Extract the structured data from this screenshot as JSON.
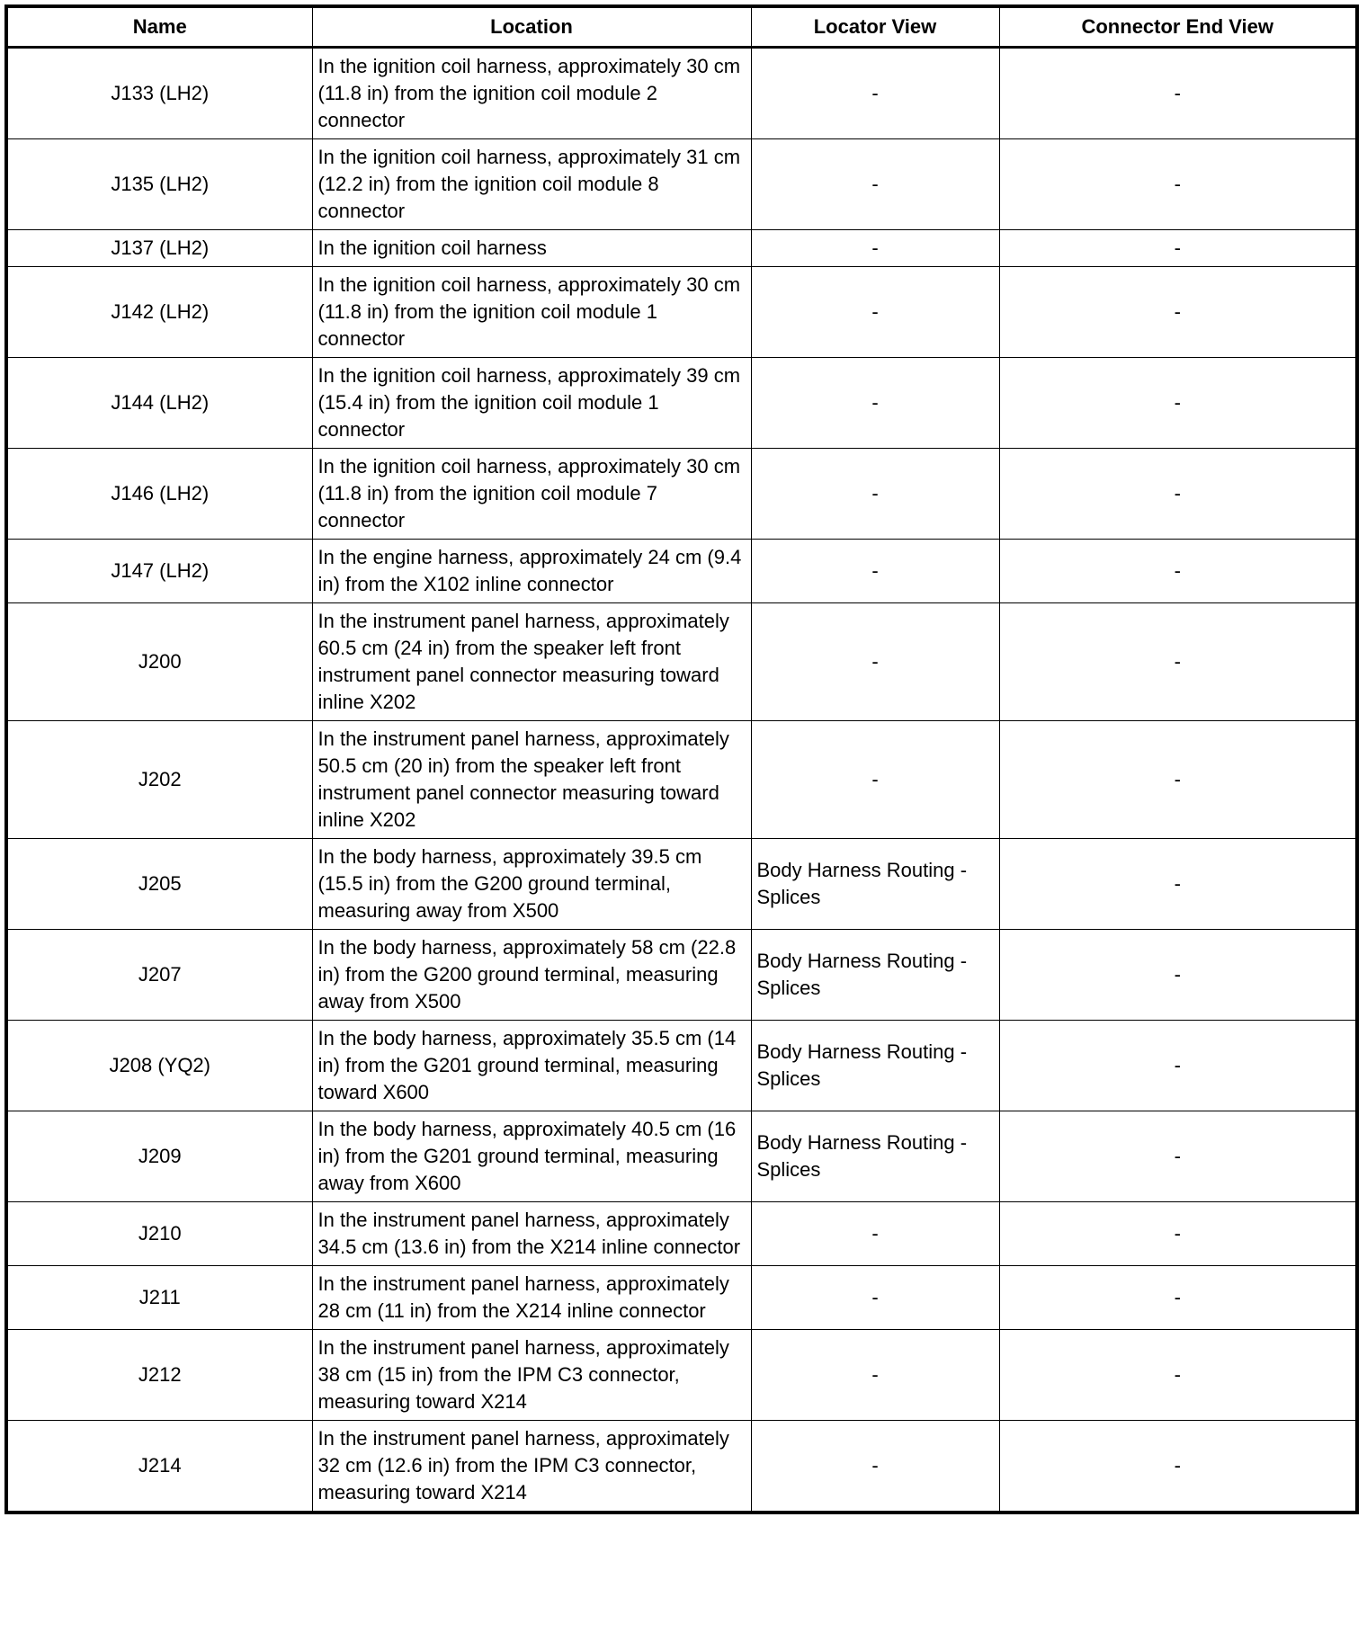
{
  "headers": [
    "Name",
    "Location",
    "Locator View",
    "Connector End View"
  ],
  "rows": [
    {
      "name": "J133 (LH2)",
      "location": "In the ignition coil harness, approximately 30 cm (11.8 in) from the ignition coil module 2 connector",
      "locator": "-",
      "end_view": "-"
    },
    {
      "name": "J135 (LH2)",
      "location": "In the ignition coil harness, approximately 31 cm (12.2 in) from the ignition coil module 8 connector",
      "locator": "-",
      "end_view": "-"
    },
    {
      "name": "J137 (LH2)",
      "location": "In the ignition coil harness",
      "locator": "-",
      "end_view": "-"
    },
    {
      "name": "J142 (LH2)",
      "location": "In the ignition coil harness, approximately 30 cm (11.8 in) from the ignition coil module 1 connector",
      "locator": "-",
      "end_view": "-"
    },
    {
      "name": "J144 (LH2)",
      "location": "In the ignition coil harness, approximately 39 cm (15.4 in) from the ignition coil module 1 connector",
      "locator": "-",
      "end_view": "-"
    },
    {
      "name": "J146 (LH2)",
      "location": "In the ignition coil harness, approximately 30 cm (11.8 in) from the ignition coil module 7 connector",
      "locator": "-",
      "end_view": "-"
    },
    {
      "name": "J147 (LH2)",
      "location": "In the engine harness, approximately 24 cm (9.4 in) from the X102 inline connector",
      "locator": "-",
      "end_view": "-"
    },
    {
      "name": "J200",
      "location": "In the instrument panel harness, approximately 60.5 cm (24 in) from the speaker left front instrument panel connector measuring toward inline X202",
      "locator": "-",
      "end_view": "-"
    },
    {
      "name": "J202",
      "location": "In the instrument panel harness, approximately 50.5 cm (20 in) from the speaker left front instrument panel connector measuring toward inline X202",
      "locator": "-",
      "end_view": "-"
    },
    {
      "name": "J205",
      "location": "In the body harness, approximately 39.5 cm (15.5 in) from the G200 ground terminal, measuring away from X500",
      "locator": "Body Harness Routing - Splices",
      "end_view": "-"
    },
    {
      "name": "J207",
      "location": "In the body harness, approximately 58 cm (22.8 in) from the G200 ground terminal, measuring away from X500",
      "locator": "Body Harness Routing - Splices",
      "end_view": "-"
    },
    {
      "name": "J208 (YQ2)",
      "location": "In the body harness, approximately 35.5 cm (14 in) from the G201 ground terminal, measuring toward X600",
      "locator": "Body Harness Routing - Splices",
      "end_view": "-"
    },
    {
      "name": "J209",
      "location": "In the body harness, approximately 40.5 cm (16 in) from the G201 ground terminal, measuring away from X600",
      "locator": "Body Harness Routing - Splices",
      "end_view": "-"
    },
    {
      "name": "J210",
      "location": "In the instrument panel harness, approximately 34.5 cm (13.6 in) from the X214 inline connector",
      "locator": "-",
      "end_view": "-"
    },
    {
      "name": "J211",
      "location": "In the instrument panel harness, approximately 28 cm (11 in) from the X214 inline connector",
      "locator": "-",
      "end_view": "-"
    },
    {
      "name": "J212",
      "location": "In the instrument panel harness, approximately 38 cm (15 in) from the IPM C3 connector, measuring toward X214",
      "locator": "-",
      "end_view": "-"
    },
    {
      "name": "J214",
      "location": "In the instrument panel harness, approximately 32 cm (12.6 in) from the IPM C3 connector, measuring toward X214",
      "locator": "-",
      "end_view": "-"
    }
  ]
}
